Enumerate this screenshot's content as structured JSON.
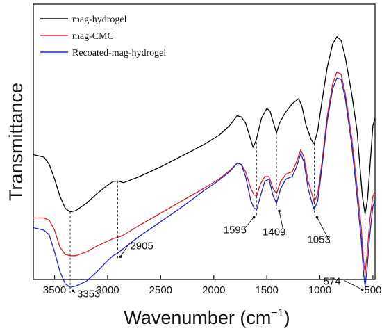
{
  "chart_data": {
    "type": "line",
    "xlabel": "Wavenumber",
    "xlabel_unit": "(cm",
    "xlabel_sup": "−1",
    "xlabel_close": ")",
    "ylabel": "Transmittance",
    "xlim": [
      3700,
      480
    ],
    "x_reversed": true,
    "y_ticks_shown": false,
    "grid": false,
    "legend_position": "top-left",
    "x_ticks": [
      3500,
      3000,
      2500,
      2000,
      1500,
      1000,
      500
    ],
    "series": [
      {
        "name": "mag-hydrogel",
        "color": "#000000",
        "points": [
          [
            3700,
            0.55
          ],
          [
            3600,
            0.56
          ],
          [
            3550,
            0.59
          ],
          [
            3500,
            0.65
          ],
          [
            3450,
            0.72
          ],
          [
            3400,
            0.77
          ],
          [
            3353,
            0.785
          ],
          [
            3300,
            0.78
          ],
          [
            3200,
            0.75
          ],
          [
            3100,
            0.71
          ],
          [
            3000,
            0.675
          ],
          [
            2950,
            0.66
          ],
          [
            2905,
            0.658
          ],
          [
            2850,
            0.665
          ],
          [
            2700,
            0.64
          ],
          [
            2500,
            0.6
          ],
          [
            2300,
            0.555
          ],
          [
            2100,
            0.51
          ],
          [
            1950,
            0.47
          ],
          [
            1850,
            0.43
          ],
          [
            1780,
            0.39
          ],
          [
            1740,
            0.395
          ],
          [
            1700,
            0.42
          ],
          [
            1650,
            0.49
          ],
          [
            1630,
            0.52
          ],
          [
            1600,
            0.49
          ],
          [
            1550,
            0.4
          ],
          [
            1500,
            0.36
          ],
          [
            1470,
            0.37
          ],
          [
            1430,
            0.43
          ],
          [
            1409,
            0.46
          ],
          [
            1380,
            0.42
          ],
          [
            1330,
            0.38
          ],
          [
            1260,
            0.34
          ],
          [
            1200,
            0.32
          ],
          [
            1170,
            0.35
          ],
          [
            1130,
            0.43
          ],
          [
            1080,
            0.49
          ],
          [
            1053,
            0.505
          ],
          [
            1020,
            0.45
          ],
          [
            980,
            0.33
          ],
          [
            930,
            0.19
          ],
          [
            880,
            0.095
          ],
          [
            840,
            0.065
          ],
          [
            800,
            0.08
          ],
          [
            760,
            0.15
          ],
          [
            700,
            0.3
          ],
          [
            650,
            0.45
          ],
          [
            600,
            0.72
          ],
          [
            574,
            0.795
          ],
          [
            550,
            0.73
          ],
          [
            520,
            0.55
          ],
          [
            500,
            0.43
          ],
          [
            480,
            0.4
          ]
        ]
      },
      {
        "name": "mag-CMC",
        "color": "#d81f26",
        "points": [
          [
            3700,
            0.81
          ],
          [
            3600,
            0.81
          ],
          [
            3550,
            0.82
          ],
          [
            3500,
            0.86
          ],
          [
            3450,
            0.93
          ],
          [
            3400,
            0.96
          ],
          [
            3353,
            0.965
          ],
          [
            3300,
            0.965
          ],
          [
            3200,
            0.95
          ],
          [
            3100,
            0.925
          ],
          [
            3000,
            0.905
          ],
          [
            2950,
            0.895
          ],
          [
            2905,
            0.89
          ],
          [
            2850,
            0.88
          ],
          [
            2700,
            0.84
          ],
          [
            2500,
            0.79
          ],
          [
            2300,
            0.74
          ],
          [
            2100,
            0.69
          ],
          [
            1950,
            0.65
          ],
          [
            1850,
            0.615
          ],
          [
            1780,
            0.585
          ],
          [
            1740,
            0.59
          ],
          [
            1700,
            0.62
          ],
          [
            1650,
            0.69
          ],
          [
            1620,
            0.715
          ],
          [
            1595,
            0.72
          ],
          [
            1560,
            0.67
          ],
          [
            1520,
            0.64
          ],
          [
            1480,
            0.64
          ],
          [
            1440,
            0.69
          ],
          [
            1409,
            0.71
          ],
          [
            1370,
            0.66
          ],
          [
            1320,
            0.63
          ],
          [
            1260,
            0.62
          ],
          [
            1220,
            0.58
          ],
          [
            1180,
            0.53
          ],
          [
            1150,
            0.56
          ],
          [
            1110,
            0.66
          ],
          [
            1070,
            0.72
          ],
          [
            1053,
            0.745
          ],
          [
            1020,
            0.71
          ],
          [
            980,
            0.58
          ],
          [
            930,
            0.39
          ],
          [
            880,
            0.26
          ],
          [
            840,
            0.21
          ],
          [
            800,
            0.22
          ],
          [
            760,
            0.3
          ],
          [
            700,
            0.48
          ],
          [
            650,
            0.68
          ],
          [
            610,
            0.85
          ],
          [
            590,
            0.98
          ],
          [
            574,
            1.04
          ],
          [
            555,
            0.96
          ],
          [
            530,
            0.82
          ],
          [
            500,
            0.72
          ],
          [
            480,
            0.7
          ]
        ]
      },
      {
        "name": "Recoated-mag-hydrogel",
        "color": "#1d23cf",
        "points": [
          [
            3700,
            0.85
          ],
          [
            3600,
            0.86
          ],
          [
            3550,
            0.88
          ],
          [
            3500,
            0.95
          ],
          [
            3450,
            1.03
          ],
          [
            3400,
            1.08
          ],
          [
            3353,
            1.095
          ],
          [
            3300,
            1.09
          ],
          [
            3200,
            1.07
          ],
          [
            3100,
            1.03
          ],
          [
            3000,
            0.985
          ],
          [
            2950,
            0.965
          ],
          [
            2905,
            0.955
          ],
          [
            2850,
            0.935
          ],
          [
            2700,
            0.885
          ],
          [
            2500,
            0.825
          ],
          [
            2300,
            0.765
          ],
          [
            2100,
            0.7
          ],
          [
            1950,
            0.655
          ],
          [
            1850,
            0.62
          ],
          [
            1780,
            0.585
          ],
          [
            1740,
            0.59
          ],
          [
            1700,
            0.64
          ],
          [
            1650,
            0.74
          ],
          [
            1620,
            0.77
          ],
          [
            1595,
            0.775
          ],
          [
            1560,
            0.72
          ],
          [
            1520,
            0.66
          ],
          [
            1480,
            0.65
          ],
          [
            1440,
            0.72
          ],
          [
            1409,
            0.75
          ],
          [
            1370,
            0.69
          ],
          [
            1320,
            0.65
          ],
          [
            1260,
            0.64
          ],
          [
            1220,
            0.6
          ],
          [
            1180,
            0.545
          ],
          [
            1150,
            0.58
          ],
          [
            1110,
            0.69
          ],
          [
            1070,
            0.755
          ],
          [
            1053,
            0.775
          ],
          [
            1020,
            0.74
          ],
          [
            980,
            0.6
          ],
          [
            930,
            0.41
          ],
          [
            880,
            0.28
          ],
          [
            840,
            0.235
          ],
          [
            800,
            0.24
          ],
          [
            760,
            0.32
          ],
          [
            700,
            0.51
          ],
          [
            650,
            0.72
          ],
          [
            610,
            0.9
          ],
          [
            590,
            1.03
          ],
          [
            574,
            1.09
          ],
          [
            555,
            1.02
          ],
          [
            530,
            0.88
          ],
          [
            500,
            0.76
          ],
          [
            480,
            0.74
          ]
        ]
      }
    ],
    "annotations": [
      {
        "label": "3353",
        "x": 3353
      },
      {
        "label": "2905",
        "x": 2905
      },
      {
        "label": "1595",
        "x": 1595
      },
      {
        "label": "1409",
        "x": 1409
      },
      {
        "label": "1053",
        "x": 1053
      },
      {
        "label": "574",
        "x": 574
      }
    ]
  }
}
